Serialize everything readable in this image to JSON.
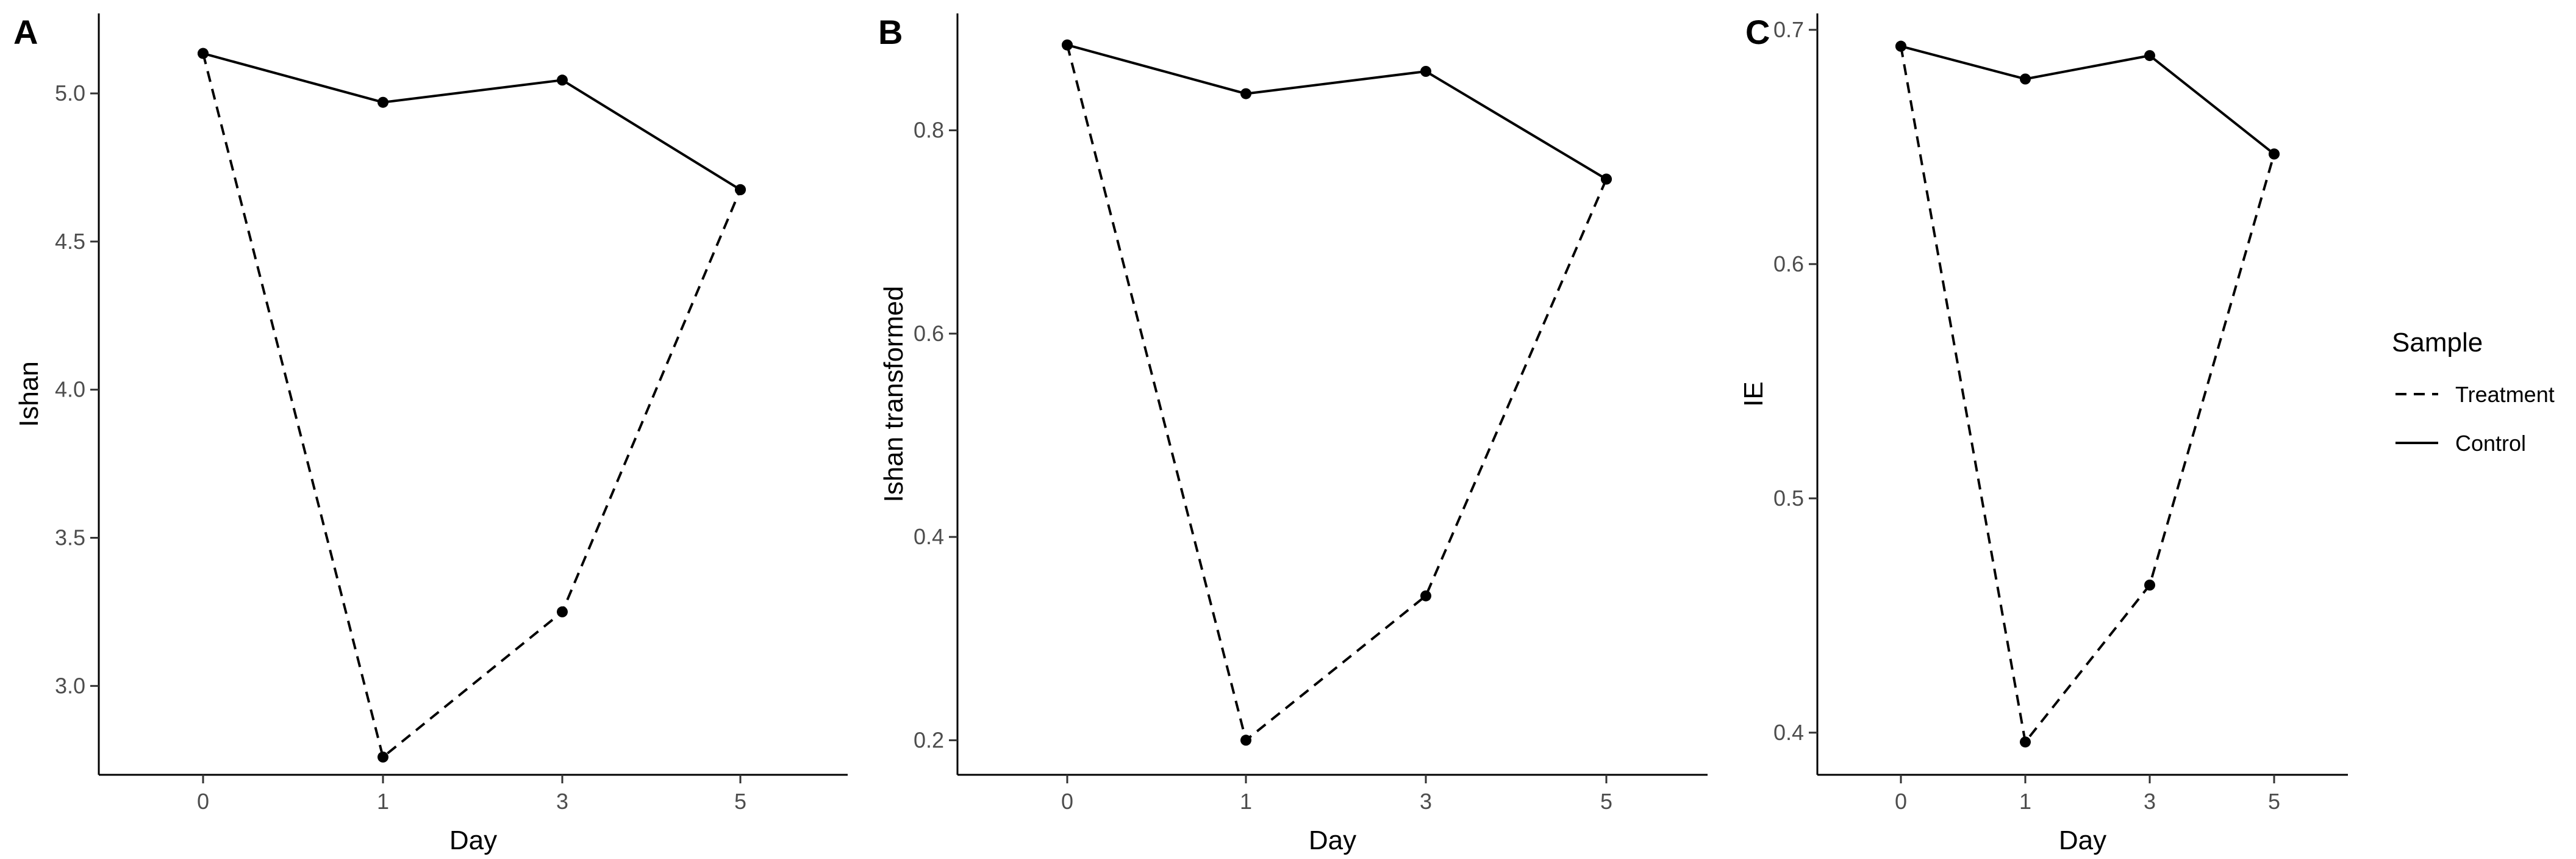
{
  "chart_data": [
    {
      "type": "line",
      "panel_tag": "A",
      "xlabel": "Day",
      "ylabel": "Ishan",
      "categories": [
        "0",
        "1",
        "3",
        "5"
      ],
      "yticks": [
        "3.0",
        "3.5",
        "4.0",
        "4.5",
        "5.0"
      ],
      "ylim": [
        2.7,
        5.27
      ],
      "series": [
        {
          "name": "Treatment",
          "line_style": "dashed",
          "values": [
            5.135,
            2.76,
            3.25,
            4.675
          ]
        },
        {
          "name": "Control",
          "line_style": "solid",
          "values": [
            5.135,
            4.97,
            5.045,
            4.675
          ]
        }
      ]
    },
    {
      "type": "line",
      "panel_tag": "B",
      "xlabel": "Day",
      "ylabel": "Ishan transformed",
      "categories": [
        "0",
        "1",
        "3",
        "5"
      ],
      "yticks": [
        "0.2",
        "0.4",
        "0.6",
        "0.8"
      ],
      "ylim": [
        0.166,
        0.915
      ],
      "series": [
        {
          "name": "Treatment",
          "line_style": "dashed",
          "values": [
            0.884,
            0.2,
            0.342,
            0.752
          ]
        },
        {
          "name": "Control",
          "line_style": "solid",
          "values": [
            0.884,
            0.836,
            0.858,
            0.752
          ]
        }
      ]
    },
    {
      "type": "line",
      "panel_tag": "C",
      "xlabel": "Day",
      "ylabel": "IE",
      "categories": [
        "0",
        "1",
        "3",
        "5"
      ],
      "yticks": [
        "0.4",
        "0.5",
        "0.6",
        "0.7"
      ],
      "ylim": [
        0.382,
        0.707
      ],
      "series": [
        {
          "name": "Treatment",
          "line_style": "dashed",
          "values": [
            0.693,
            0.396,
            0.463,
            0.647
          ]
        },
        {
          "name": "Control",
          "line_style": "solid",
          "values": [
            0.693,
            0.679,
            0.689,
            0.647
          ]
        }
      ]
    }
  ],
  "legend": {
    "title": "Sample",
    "items": [
      {
        "label": "Treatment",
        "line_style": "dashed"
      },
      {
        "label": "Control",
        "line_style": "solid"
      }
    ]
  },
  "colors": {
    "line": "#000000",
    "axis": "#000000",
    "tick_text": "#4d4d4d"
  }
}
